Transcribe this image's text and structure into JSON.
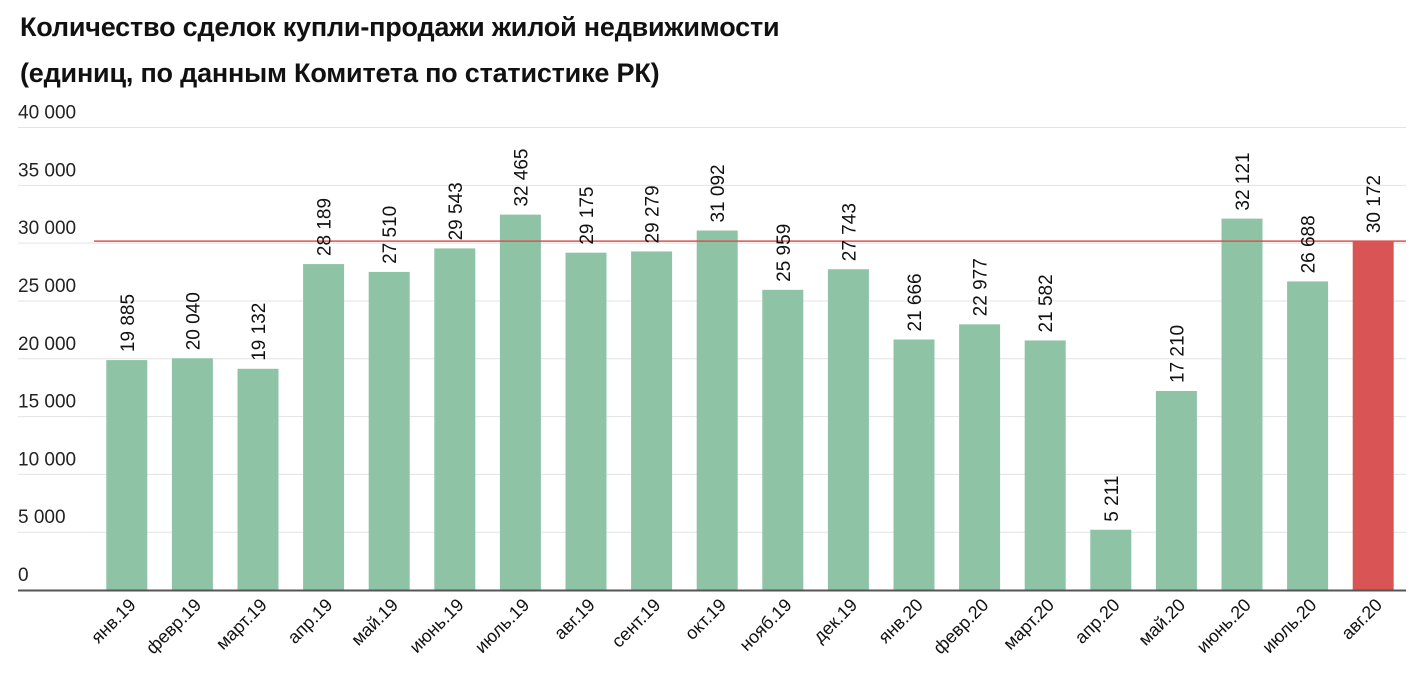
{
  "chart_data": {
    "type": "bar",
    "title": "Количество сделок купли-продажи жилой недвижимости",
    "subtitle": "(единиц, по данным Комитета по статистике РК)",
    "categories": [
      "янв.19",
      "февр.19",
      "март.19",
      "апр.19",
      "май.19",
      "июнь.19",
      "июль.19",
      "авг.19",
      "сент.19",
      "окт.19",
      "нояб.19",
      "дек.19",
      "янв.20",
      "февр.20",
      "март.20",
      "апр.20",
      "май.20",
      "июнь.20",
      "июль.20",
      "авг.20"
    ],
    "values": [
      19885,
      20040,
      19132,
      28189,
      27510,
      29543,
      32465,
      29175,
      29279,
      31092,
      25959,
      27743,
      21666,
      22977,
      21582,
      5211,
      17210,
      32121,
      26688,
      30172
    ],
    "value_labels": [
      "19 885",
      "20 040",
      "19 132",
      "28 189",
      "27 510",
      "29 543",
      "32 465",
      "29 175",
      "29 279",
      "31 092",
      "25 959",
      "27 743",
      "21 666",
      "22 977",
      "21 582",
      "5 211",
      "17 210",
      "32 121",
      "26 688",
      "30 172"
    ],
    "yticks": [
      0,
      5000,
      10000,
      15000,
      20000,
      25000,
      30000,
      35000,
      40000
    ],
    "ytick_labels": [
      "0",
      "5 000",
      "10 000",
      "15 000",
      "20 000",
      "25 000",
      "30 000",
      "35 000",
      "40 000"
    ],
    "ylim": [
      0,
      40000
    ],
    "reference_line": 30172,
    "highlight_index": 19,
    "grid": true,
    "xlabel": "",
    "ylabel": "",
    "colors": {
      "bar": "#8fc3a6",
      "highlight_bar": "#d95555",
      "reference_line": "#d9534f",
      "grid": "#e3e3e3",
      "axis": "#555555"
    }
  }
}
